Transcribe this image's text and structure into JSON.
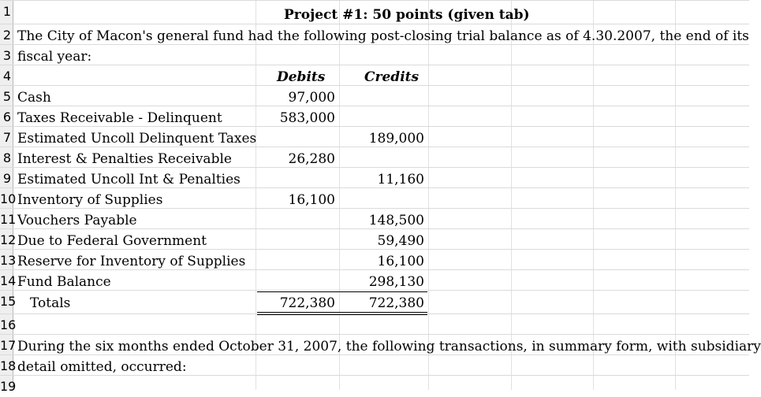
{
  "title": "Project #1: 50 points (given tab)",
  "intro_line1": "The City of Macon's general fund had the following post-closing trial balance as of 4.30.2007, the end of its",
  "intro_line2": "fiscal year:",
  "headers": {
    "debits": "Debits",
    "credits": "Credits"
  },
  "rows": [
    {
      "account": "Cash",
      "debit": "97,000",
      "credit": ""
    },
    {
      "account": "Taxes Receivable - Delinquent",
      "debit": "583,000",
      "credit": ""
    },
    {
      "account": "Estimated Uncoll Delinquent Taxes",
      "debit": "",
      "credit": "189,000"
    },
    {
      "account": "Interest & Penalties Receivable",
      "debit": "26,280",
      "credit": ""
    },
    {
      "account": "Estimated Uncoll Int & Penalties",
      "debit": "",
      "credit": "11,160"
    },
    {
      "account": "Inventory of Supplies",
      "debit": "16,100",
      "credit": ""
    },
    {
      "account": "Vouchers Payable",
      "debit": "",
      "credit": "148,500"
    },
    {
      "account": "Due to Federal Government",
      "debit": "",
      "credit": "59,490"
    },
    {
      "account": "Reserve for Inventory of Supplies",
      "debit": "",
      "credit": "16,100"
    },
    {
      "account": "Fund Balance",
      "debit": "",
      "credit": "298,130"
    }
  ],
  "totals": {
    "label": "Totals",
    "debit": "722,380",
    "credit": "722,380"
  },
  "outro_line1": "During the six months ended October 31, 2007, the following transactions, in summary form, with subsidiary",
  "outro_line2": "detail omitted, occurred:",
  "row_numbers": [
    "1",
    "2",
    "3",
    "4",
    "5",
    "6",
    "7",
    "8",
    "9",
    "10",
    "11",
    "12",
    "13",
    "14",
    "15",
    "16",
    "17",
    "18",
    "19"
  ]
}
